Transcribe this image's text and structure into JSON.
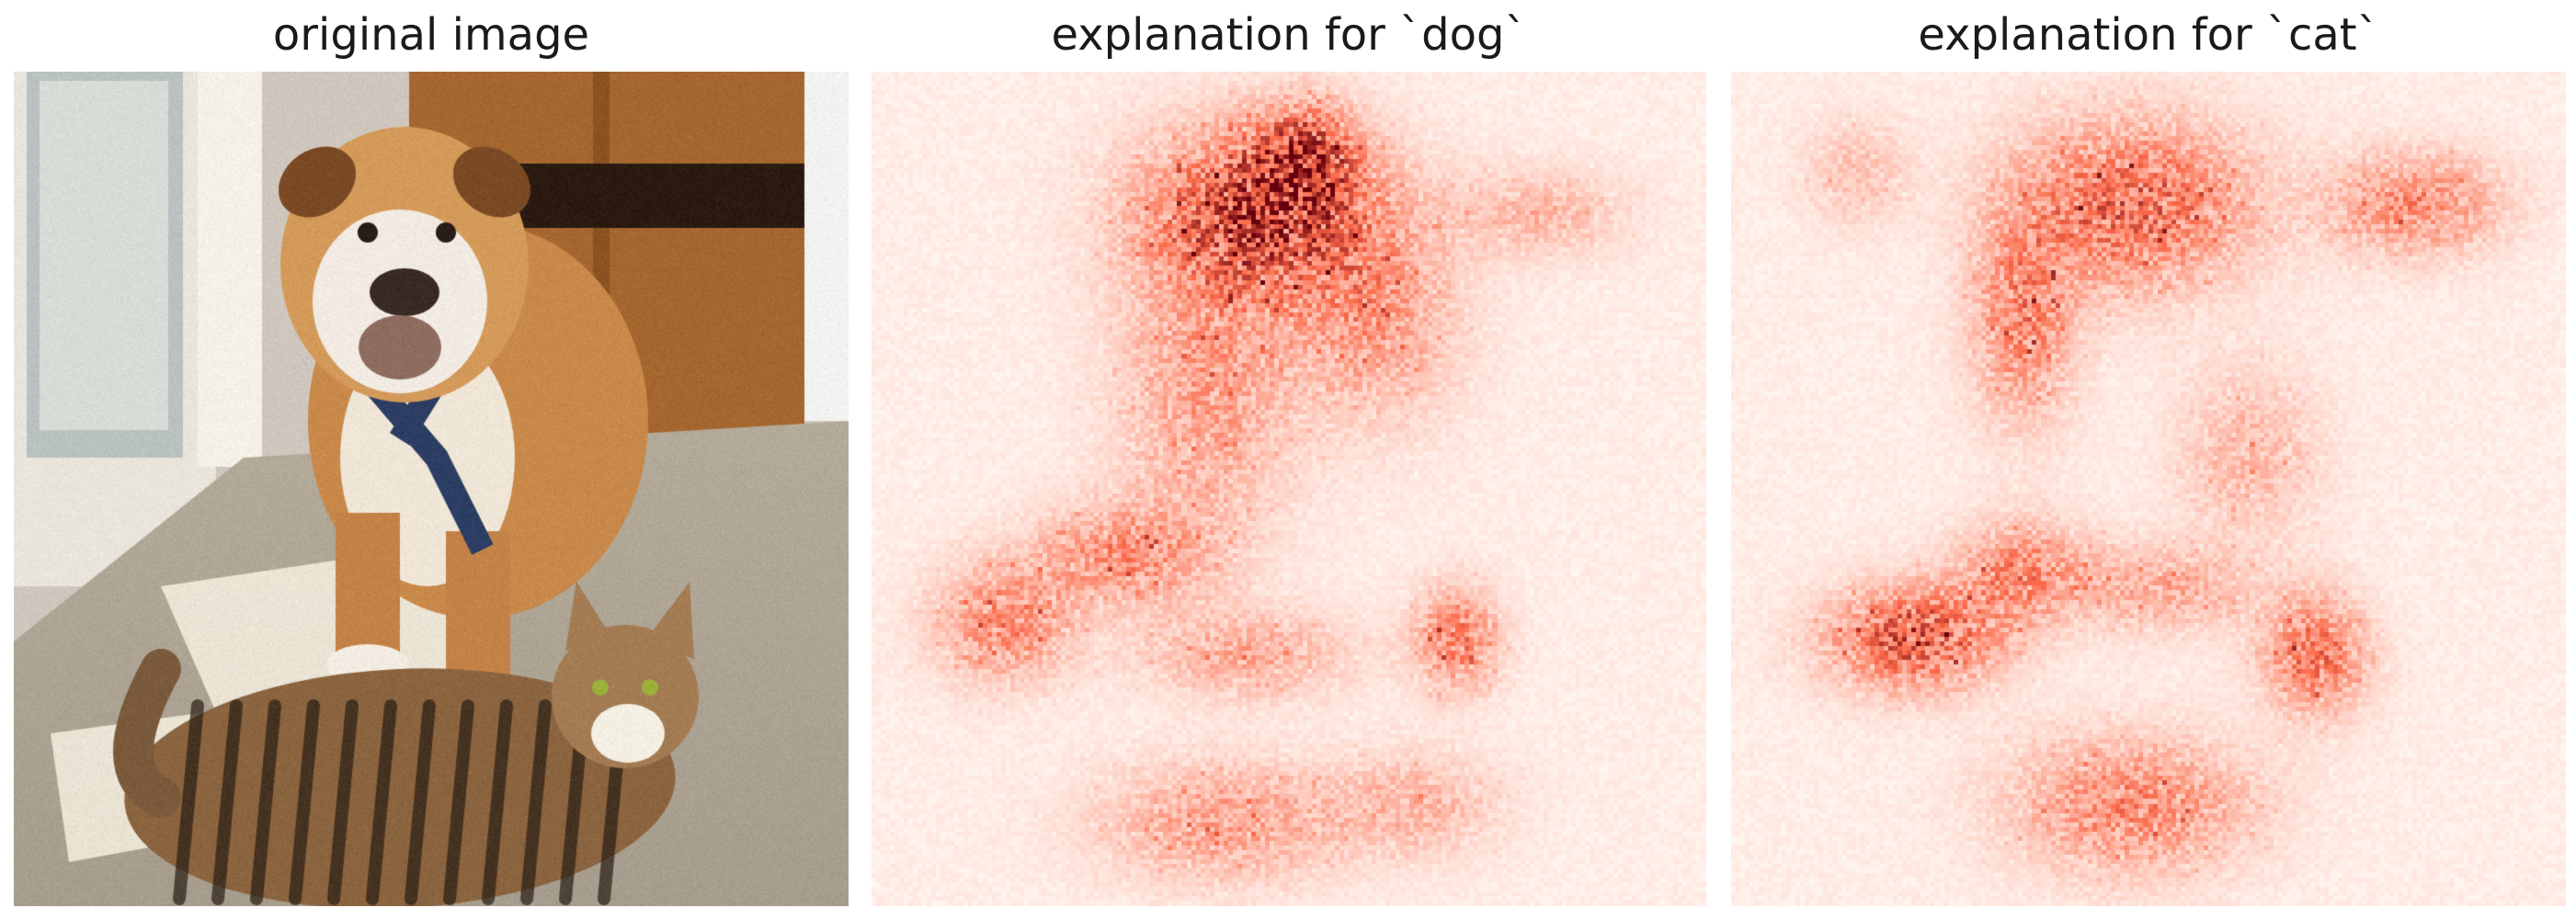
{
  "figure": {
    "panels": [
      {
        "id": "original",
        "title": "original image",
        "kind": "photo"
      },
      {
        "id": "dog",
        "title": "explanation for `dog`",
        "kind": "heatmap",
        "colormap": "Reds"
      },
      {
        "id": "cat",
        "title": "explanation for `cat`",
        "kind": "heatmap",
        "colormap": "Reds"
      }
    ]
  },
  "colors": {
    "heat_low": "#fff5f0",
    "heat_mid": "#fb6a4a",
    "heat_high": "#67000d",
    "background": "#ffffff",
    "title_text": "#1a1a1a"
  }
}
